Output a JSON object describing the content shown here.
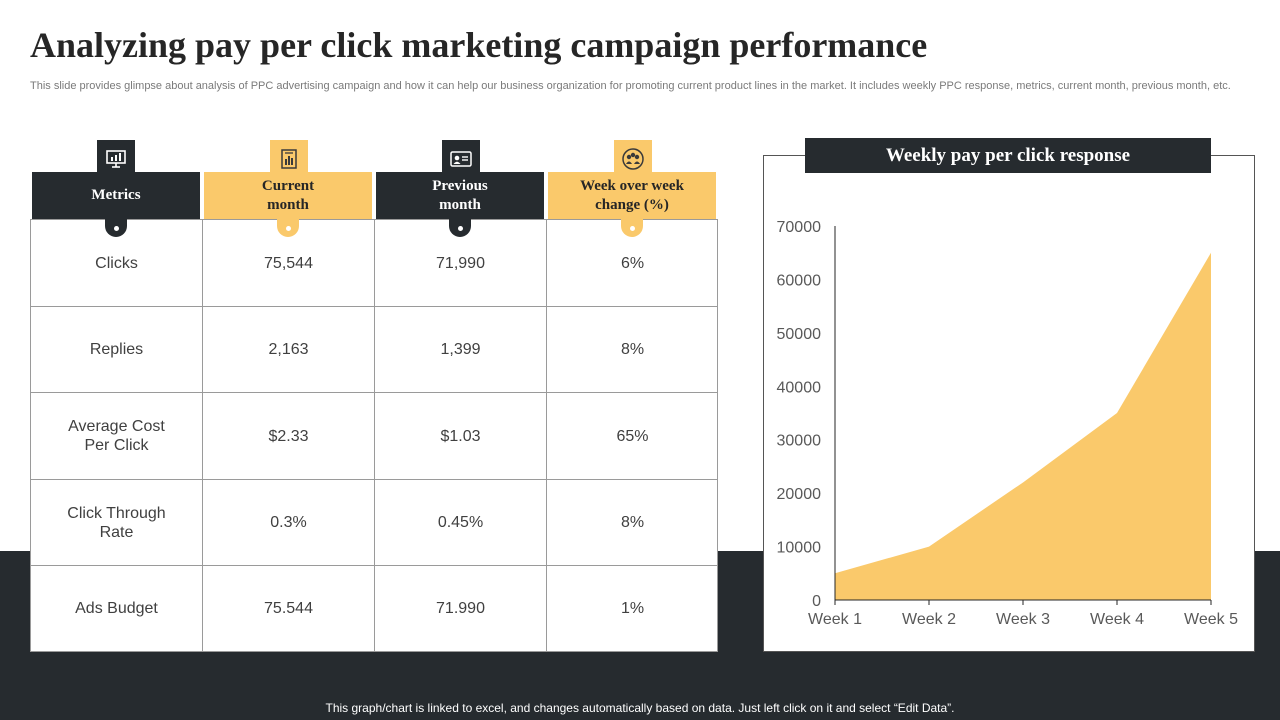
{
  "title": "Analyzing pay per click marketing campaign performance",
  "subtitle": "This slide provides glimpse about analysis of PPC advertising campaign and how it can help our business organization for promoting current product lines in the market. It includes weekly PPC response, metrics, current month, previous month, etc.",
  "colors": {
    "dark": "#262b2f",
    "gold": "#fac96b",
    "border": "#9a9a9a"
  },
  "table": {
    "headers": [
      {
        "label": "Metrics",
        "style": "dark",
        "icon": "presentation-icon"
      },
      {
        "label": "Current month",
        "style": "gold",
        "icon": "report-chart-icon"
      },
      {
        "label": "Previous month",
        "style": "dark",
        "icon": "id-card-icon"
      },
      {
        "label": "Week over week change (%)",
        "style": "gold",
        "icon": "team-icon"
      }
    ],
    "rows": [
      [
        "Clicks",
        "75,544",
        "71,990",
        "6%"
      ],
      [
        "Replies",
        "2,163",
        "1,399",
        "8%"
      ],
      [
        "Average Cost Per Click",
        "$2.33",
        "$1.03",
        "65%"
      ],
      [
        "Click Through Rate",
        "0.3%",
        "0.45%",
        "8%"
      ],
      [
        "Ads Budget",
        "75.544",
        "71.990",
        "1%"
      ]
    ]
  },
  "chart_data": {
    "type": "area",
    "title": "Weekly pay per click response",
    "categories": [
      "Week 1",
      "Week 2",
      "Week 3",
      "Week 4",
      "Week 5"
    ],
    "series": [
      {
        "values": [
          5000,
          10000,
          22000,
          35000,
          65000
        ]
      }
    ],
    "ylim": [
      0,
      70000
    ],
    "yticks": [
      "0",
      "10000",
      "20000",
      "30000",
      "40000",
      "50000",
      "60000",
      "70000"
    ],
    "color": "#fac96b",
    "grid": false,
    "legend": "none"
  },
  "footer": "This graph/chart is linked to excel, and changes automatically based on data. Just left click on it and select “Edit Data”."
}
